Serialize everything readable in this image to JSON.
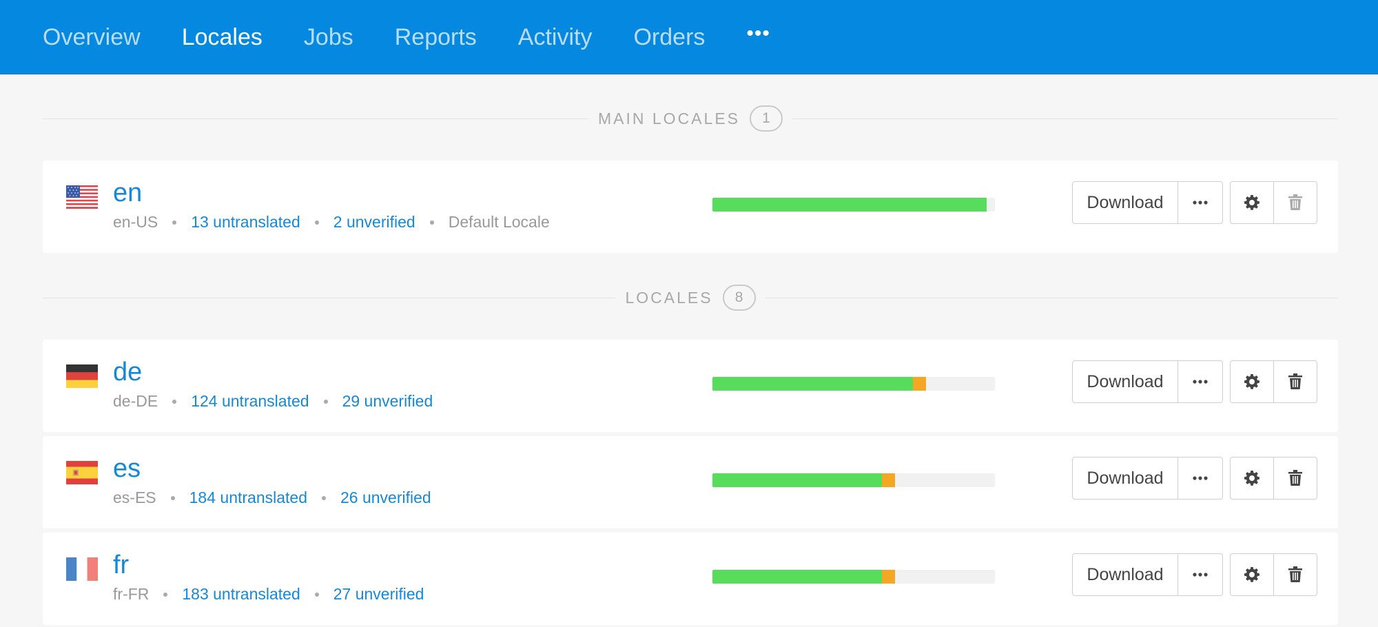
{
  "nav": {
    "items": [
      {
        "label": "Overview",
        "active": false
      },
      {
        "label": "Locales",
        "active": true
      },
      {
        "label": "Jobs",
        "active": false
      },
      {
        "label": "Reports",
        "active": false
      },
      {
        "label": "Activity",
        "active": false
      },
      {
        "label": "Orders",
        "active": false
      }
    ],
    "more_label": "•••"
  },
  "sections": {
    "main": {
      "title": "MAIN LOCALES",
      "count": "1"
    },
    "other": {
      "title": "LOCALES",
      "count": "8"
    }
  },
  "locales": [
    {
      "code": "en",
      "tag": "en-US",
      "flag": "us-flag-icon",
      "untranslated": "13 untranslated",
      "unverified": "2 unverified",
      "note": "Default Locale",
      "progress": {
        "verified": 0.97,
        "unverified": 0.0
      },
      "delete_disabled": true
    },
    {
      "code": "de",
      "tag": "de-DE",
      "flag": "de-flag-icon",
      "untranslated": "124 untranslated",
      "unverified": "29 unverified",
      "progress": {
        "verified": 0.71,
        "unverified": 0.047
      },
      "delete_disabled": false
    },
    {
      "code": "es",
      "tag": "es-ES",
      "flag": "es-flag-icon",
      "untranslated": "184 untranslated",
      "unverified": "26 unverified",
      "progress": {
        "verified": 0.6,
        "unverified": 0.047
      },
      "delete_disabled": false
    },
    {
      "code": "fr",
      "tag": "fr-FR",
      "flag": "fr-flag-icon",
      "untranslated": "183 untranslated",
      "unverified": "27 unverified",
      "progress": {
        "verified": 0.6,
        "unverified": 0.047
      },
      "delete_disabled": false
    }
  ],
  "buttons": {
    "download_label": "Download"
  },
  "colors": {
    "nav_bg": "#0589e0",
    "link": "#1588d8",
    "progress_verified": "#57dc5c",
    "progress_unverified": "#f5a623"
  }
}
